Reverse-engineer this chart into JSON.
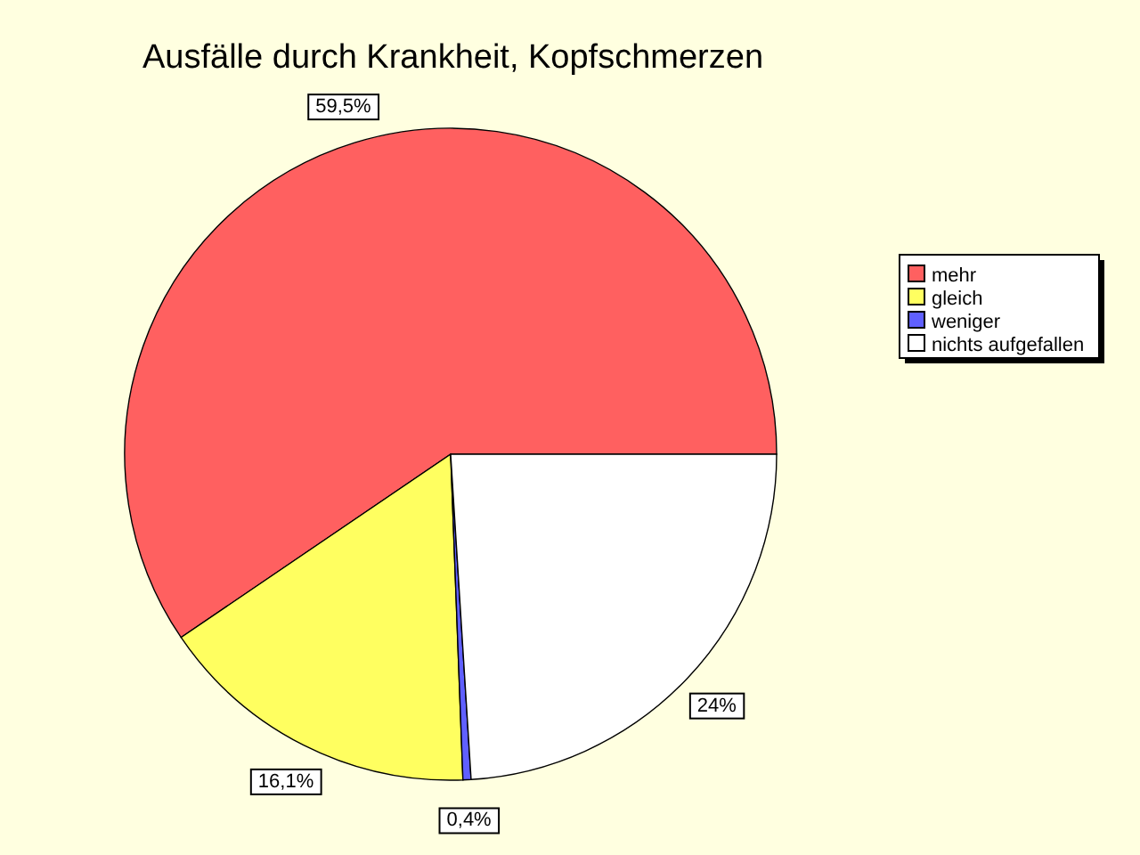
{
  "chart_data": {
    "type": "pie",
    "title": "Ausfälle durch Krankheit, Kopfschmerzen",
    "categories": [
      "mehr",
      "gleich",
      "weniger",
      "nichts aufgefallen"
    ],
    "values": [
      59.5,
      16.1,
      0.4,
      24
    ],
    "value_labels": [
      "59,5%",
      "16,1%",
      "0,4%",
      "24%"
    ],
    "colors": [
      "#ff6060",
      "#ffff60",
      "#6060ff",
      "#ffffff"
    ],
    "legend": "right"
  }
}
